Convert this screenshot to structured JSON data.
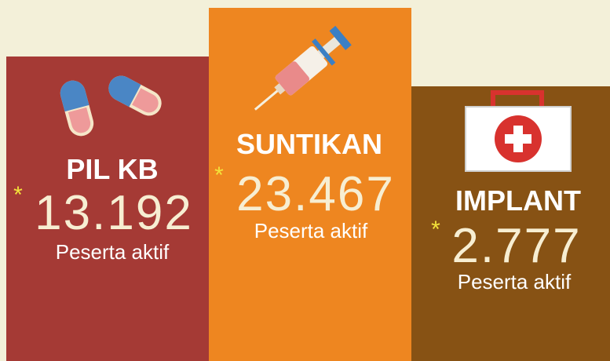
{
  "panels": [
    {
      "label": "PIL KB",
      "marker": "*",
      "value": "13.192",
      "caption": "Peserta aktif"
    },
    {
      "label": "SUNTIKAN",
      "marker": "*",
      "value": "23.467",
      "caption": "Peserta aktif"
    },
    {
      "label": "IMPLANT",
      "marker": "*",
      "value": "2.777",
      "caption": "Peserta aktif"
    }
  ]
}
